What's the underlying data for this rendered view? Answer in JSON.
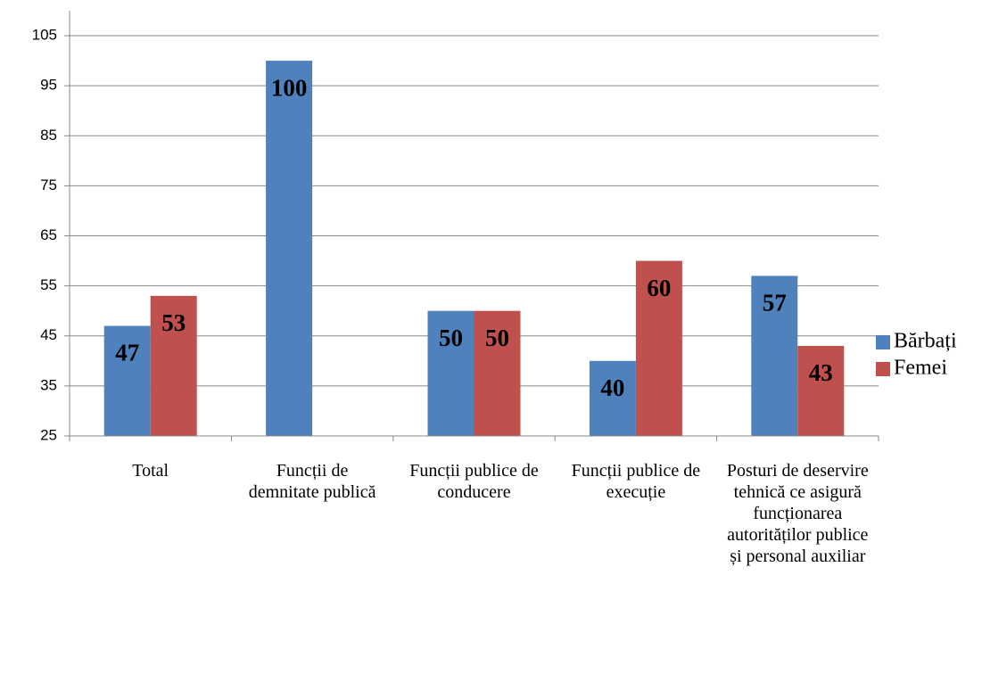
{
  "chart_data": {
    "type": "bar",
    "categories": [
      "Total",
      "Funcții de demnitate publică",
      "Funcții publice de conducere",
      "Funcții publice de execuție",
      "Posturi de deservire tehnică ce asigură funcționarea autorităților publice și personal auxiliar"
    ],
    "series": [
      {
        "name": "Bărbați",
        "color": "#4f81bd",
        "values": [
          47,
          100,
          50,
          40,
          57
        ]
      },
      {
        "name": "Femei",
        "color": "#c0504d",
        "values": [
          53,
          null,
          50,
          60,
          43
        ]
      }
    ],
    "ylim": [
      25,
      110
    ],
    "yticks": [
      25,
      35,
      45,
      55,
      65,
      75,
      85,
      95,
      105
    ],
    "grid": true,
    "legend": "right"
  }
}
